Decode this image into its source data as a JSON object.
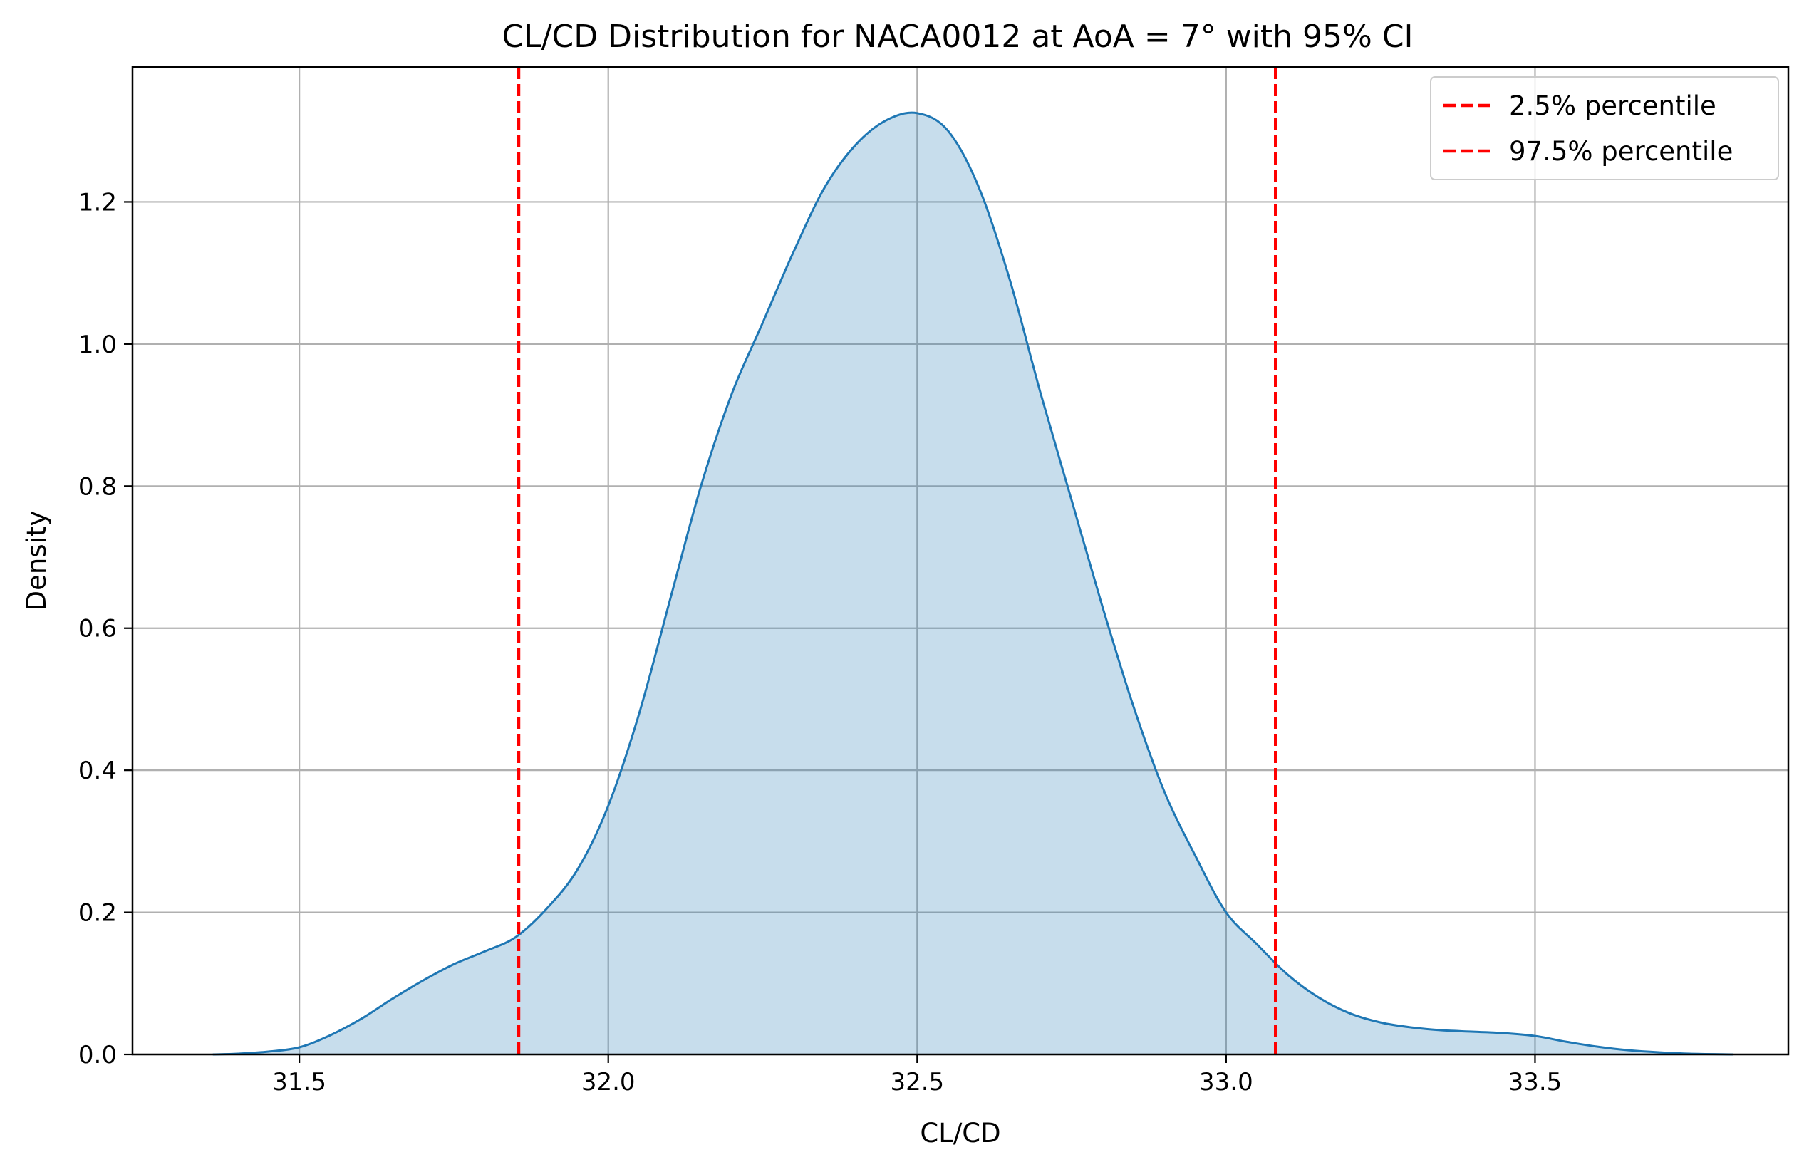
{
  "chart_data": {
    "type": "area",
    "title": "CL/CD Distribution for NACA0012 at AoA = 7° with 95% CI",
    "xlabel": "CL/CD",
    "ylabel": "Density",
    "xlim": [
      31.23,
      33.91
    ],
    "ylim": [
      0,
      1.39
    ],
    "x_ticks": [
      31.5,
      32.0,
      32.5,
      33.0,
      33.5
    ],
    "x_tick_labels": [
      "31.5",
      "32.0",
      "32.5",
      "33.0",
      "33.5"
    ],
    "y_ticks": [
      0.0,
      0.2,
      0.4,
      0.6,
      0.8,
      1.0,
      1.2
    ],
    "y_tick_labels": [
      "0.0",
      "0.2",
      "0.4",
      "0.6",
      "0.8",
      "1.0",
      "1.2"
    ],
    "grid": true,
    "legend_position": "top-right",
    "series": [
      {
        "kind": "kde",
        "color": "#1f77b4",
        "fill_color": "#1f77b4",
        "fill_opacity": 0.25,
        "x": [
          31.36,
          31.4,
          31.45,
          31.5,
          31.55,
          31.6,
          31.65,
          31.7,
          31.75,
          31.8,
          31.85,
          31.9,
          31.95,
          32.0,
          32.05,
          32.1,
          32.15,
          32.2,
          32.25,
          32.3,
          32.35,
          32.4,
          32.45,
          32.5,
          32.55,
          32.6,
          32.65,
          32.7,
          32.75,
          32.8,
          32.85,
          32.9,
          32.95,
          33.0,
          33.05,
          33.1,
          33.15,
          33.2,
          33.25,
          33.3,
          33.35,
          33.4,
          33.45,
          33.5,
          33.55,
          33.6,
          33.65,
          33.7,
          33.75,
          33.82
        ],
        "y": [
          0.0,
          0.001,
          0.004,
          0.01,
          0.027,
          0.05,
          0.078,
          0.104,
          0.127,
          0.145,
          0.165,
          0.205,
          0.26,
          0.35,
          0.48,
          0.64,
          0.8,
          0.93,
          1.03,
          1.13,
          1.22,
          1.28,
          1.315,
          1.325,
          1.3,
          1.22,
          1.09,
          0.93,
          0.78,
          0.63,
          0.49,
          0.37,
          0.28,
          0.2,
          0.155,
          0.112,
          0.08,
          0.058,
          0.045,
          0.038,
          0.034,
          0.032,
          0.03,
          0.026,
          0.018,
          0.011,
          0.006,
          0.003,
          0.001,
          0.0
        ]
      }
    ],
    "vlines": [
      {
        "name": "2.5% percentile",
        "x": 31.855,
        "color": "#ff0000",
        "style": "dashed"
      },
      {
        "name": "97.5% percentile",
        "x": 33.08,
        "color": "#ff0000",
        "style": "dashed"
      }
    ]
  }
}
